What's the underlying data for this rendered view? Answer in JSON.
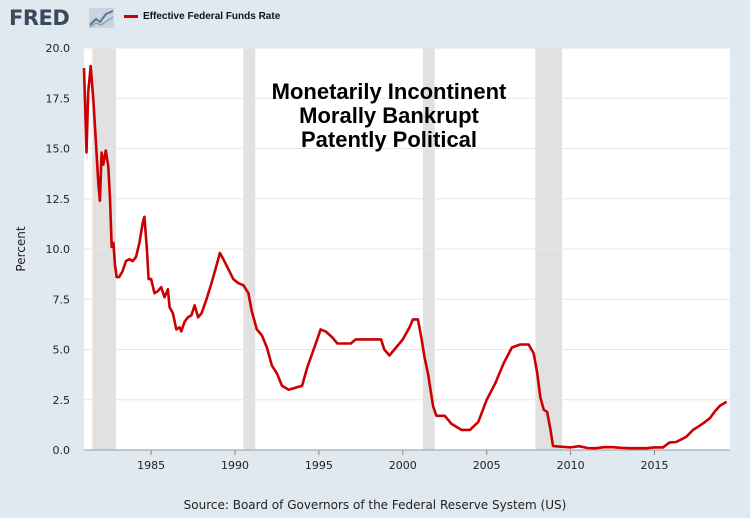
{
  "header": {
    "logo_text": "FRED",
    "logo_icon": "line-chart-icon",
    "legend_label": "Effective Federal Funds Rate",
    "legend_color": "#cc0000"
  },
  "annotation": {
    "lines": [
      "Monetarily Incontinent",
      "Morally Bankrupt",
      "Patently Political"
    ]
  },
  "source": "Source: Board of Governors of the Federal Reserve System (US)",
  "chart_data": {
    "type": "line",
    "ylabel": "Percent",
    "xlabel": "",
    "ylim": [
      0,
      20
    ],
    "xlim": [
      1981.0,
      2019.5
    ],
    "grid": true,
    "y_ticks": [
      "0.0",
      "2.5",
      "5.0",
      "7.5",
      "10.0",
      "12.5",
      "15.0",
      "17.5",
      "20.0"
    ],
    "x_ticks": [
      "1985",
      "1990",
      "1995",
      "2000",
      "2005",
      "2010",
      "2015"
    ],
    "recessions": [
      [
        1981.5,
        1982.9
      ],
      [
        1990.5,
        1991.2
      ],
      [
        2001.2,
        2001.9
      ],
      [
        2007.9,
        2009.5
      ]
    ],
    "series": [
      {
        "name": "Effective Federal Funds Rate",
        "color": "#cc0000",
        "x": [
          1981.0,
          1981.15,
          1981.25,
          1981.4,
          1981.55,
          1981.7,
          1981.85,
          1981.95,
          1982.05,
          1982.15,
          1982.3,
          1982.45,
          1982.55,
          1982.65,
          1982.75,
          1982.85,
          1982.95,
          1983.1,
          1983.3,
          1983.5,
          1983.7,
          1983.9,
          1984.1,
          1984.3,
          1984.5,
          1984.6,
          1984.75,
          1984.85,
          1985.0,
          1985.2,
          1985.4,
          1985.6,
          1985.8,
          1986.0,
          1986.1,
          1986.3,
          1986.5,
          1986.7,
          1986.8,
          1987.0,
          1987.2,
          1987.4,
          1987.6,
          1987.8,
          1988.0,
          1988.3,
          1988.6,
          1988.9,
          1989.1,
          1989.3,
          1989.6,
          1989.9,
          1990.2,
          1990.5,
          1990.8,
          1991.0,
          1991.3,
          1991.6,
          1991.9,
          1992.2,
          1992.5,
          1992.8,
          1993.2,
          1993.6,
          1994.0,
          1994.3,
          1994.6,
          1994.9,
          1995.1,
          1995.4,
          1995.8,
          1996.1,
          1996.5,
          1996.9,
          1997.2,
          1997.6,
          1998.0,
          1998.4,
          1998.7,
          1998.9,
          1999.2,
          1999.6,
          2000.0,
          2000.4,
          2000.6,
          2000.9,
          2001.1,
          2001.3,
          2001.5,
          2001.8,
          2002.0,
          2002.5,
          2002.9,
          2003.5,
          2004.0,
          2004.5,
          2005.0,
          2005.5,
          2006.0,
          2006.5,
          2007.0,
          2007.5,
          2007.8,
          2008.0,
          2008.2,
          2008.4,
          2008.6,
          2008.8,
          2008.95,
          2009.5,
          2010.0,
          2010.5,
          2011.0,
          2011.5,
          2012.0,
          2012.5,
          2013.0,
          2013.5,
          2014.0,
          2014.5,
          2015.0,
          2015.5,
          2015.9,
          2016.3,
          2016.9,
          2017.3,
          2017.6,
          2017.9,
          2018.3,
          2018.6,
          2018.9,
          2019.3
        ],
        "values": [
          19.0,
          14.8,
          17.8,
          19.1,
          17.5,
          15.5,
          13.3,
          12.4,
          14.8,
          14.2,
          14.9,
          14.1,
          12.5,
          10.1,
          10.3,
          9.2,
          8.6,
          8.6,
          8.9,
          9.4,
          9.5,
          9.4,
          9.6,
          10.3,
          11.3,
          11.6,
          10.0,
          8.5,
          8.5,
          7.8,
          7.9,
          8.1,
          7.6,
          8.0,
          7.1,
          6.8,
          6.0,
          6.1,
          5.9,
          6.4,
          6.6,
          6.7,
          7.2,
          6.6,
          6.8,
          7.5,
          8.3,
          9.2,
          9.8,
          9.5,
          9.0,
          8.5,
          8.3,
          8.2,
          7.8,
          6.9,
          6.0,
          5.7,
          5.1,
          4.2,
          3.8,
          3.2,
          3.0,
          3.1,
          3.2,
          4.1,
          4.8,
          5.5,
          6.0,
          5.9,
          5.6,
          5.3,
          5.3,
          5.3,
          5.5,
          5.5,
          5.5,
          5.5,
          5.5,
          5.0,
          4.7,
          5.1,
          5.5,
          6.1,
          6.5,
          6.5,
          5.6,
          4.6,
          3.8,
          2.2,
          1.7,
          1.7,
          1.3,
          1.0,
          1.0,
          1.4,
          2.5,
          3.3,
          4.3,
          5.1,
          5.25,
          5.25,
          4.8,
          3.9,
          2.6,
          2.0,
          1.9,
          1.0,
          0.2,
          0.16,
          0.13,
          0.19,
          0.1,
          0.09,
          0.14,
          0.14,
          0.11,
          0.09,
          0.09,
          0.09,
          0.13,
          0.13,
          0.38,
          0.4,
          0.66,
          1.0,
          1.16,
          1.33,
          1.58,
          1.92,
          2.2,
          2.4
        ]
      }
    ]
  }
}
